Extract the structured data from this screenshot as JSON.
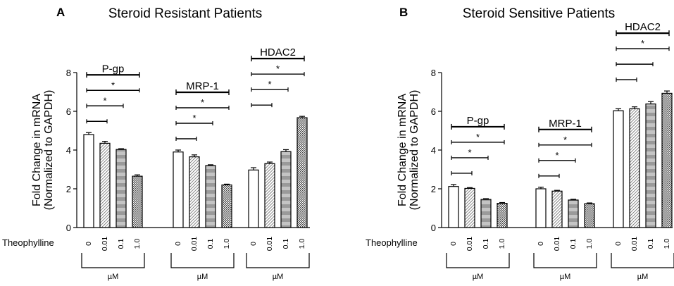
{
  "chart_data": [
    {
      "type": "bar",
      "panel_label": "A",
      "title": "Steroid Resistant Patients",
      "ylabel_line1": "Fold Change in mRNA",
      "ylabel_line2": "(Normalized to GAPDH)",
      "ylim": [
        0,
        8
      ],
      "yticks": [
        "0",
        "2",
        "4",
        "6",
        "8"
      ],
      "row_label": "Theophylline",
      "categories": [
        "0",
        "0.01",
        "0.1",
        "1.0"
      ],
      "unit": "µM",
      "groups": [
        {
          "name": "P-gp",
          "values": [
            4.8,
            4.35,
            4.03,
            2.65
          ],
          "errors": [
            0.1,
            0.1,
            0.04,
            0.07
          ],
          "sig": [
            "",
            "*",
            "*"
          ]
        },
        {
          "name": "MRP-1",
          "values": [
            3.9,
            3.65,
            3.2,
            2.2
          ],
          "errors": [
            0.1,
            0.1,
            0.04,
            0.04
          ],
          "sig": [
            "",
            "*",
            "*"
          ]
        },
        {
          "name": "HDAC2",
          "values": [
            2.97,
            3.3,
            3.92,
            5.67
          ],
          "errors": [
            0.12,
            0.08,
            0.1,
            0.07
          ],
          "sig": [
            "",
            "*",
            "*"
          ]
        }
      ]
    },
    {
      "type": "bar",
      "panel_label": "B",
      "title": "Steroid Sensitive Patients",
      "ylabel_line1": "Fold Change in mRNA",
      "ylabel_line2": "(Normalized to GAPDH)",
      "ylim": [
        0,
        8
      ],
      "yticks": [
        "0",
        "2",
        "4",
        "6",
        "8"
      ],
      "row_label": "Theophylline",
      "categories": [
        "0",
        "0.01",
        "0.1",
        "1.0"
      ],
      "unit": "µM",
      "groups": [
        {
          "name": "P-gp",
          "values": [
            2.12,
            2.02,
            1.45,
            1.25
          ],
          "errors": [
            0.1,
            0.04,
            0.04,
            0.04
          ],
          "sig": [
            "",
            "*",
            "*"
          ]
        },
        {
          "name": "MRP-1",
          "values": [
            2.0,
            1.88,
            1.42,
            1.23
          ],
          "errors": [
            0.08,
            0.04,
            0.04,
            0.04
          ],
          "sig": [
            "",
            "*",
            "*"
          ]
        },
        {
          "name": "HDAC2",
          "values": [
            6.03,
            6.13,
            6.38,
            6.93
          ],
          "errors": [
            0.1,
            0.1,
            0.12,
            0.12
          ],
          "sig": [
            "",
            "",
            "*"
          ]
        }
      ]
    }
  ]
}
